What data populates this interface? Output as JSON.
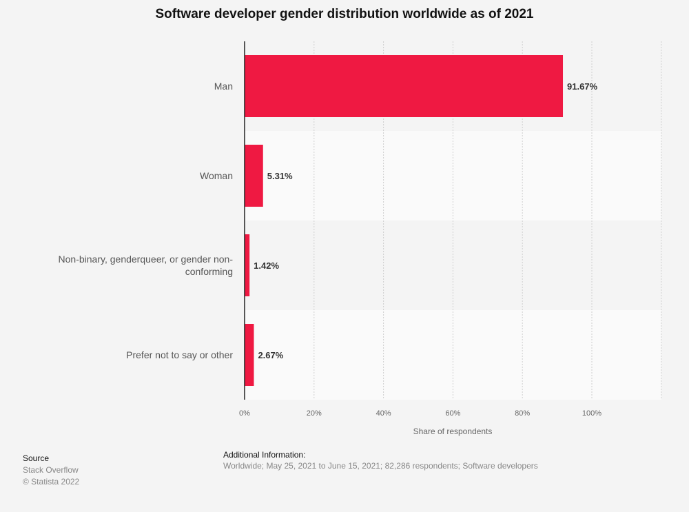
{
  "chart_data": {
    "type": "bar",
    "orientation": "horizontal",
    "title": "Software developer gender distribution worldwide as of 2021",
    "categories": [
      "Man",
      "Woman",
      "Non-binary, genderqueer, or gender non-conforming",
      "Prefer not to say or other"
    ],
    "category_lines": [
      [
        "Man"
      ],
      [
        "Woman"
      ],
      [
        "Non-binary, genderqueer, or gender non-",
        "conforming"
      ],
      [
        "Prefer not to say or other"
      ]
    ],
    "values": [
      91.67,
      5.31,
      1.42,
      2.67
    ],
    "data_labels": [
      "91.67%",
      "5.31%",
      "1.42%",
      "2.67%"
    ],
    "xlabel": "Share of respondents",
    "xlim": [
      0,
      120
    ],
    "xticks": [
      0,
      20,
      40,
      60,
      80,
      100
    ],
    "xtick_labels": [
      "0%",
      "20%",
      "40%",
      "60%",
      "80%",
      "100%"
    ],
    "grid": true,
    "bar_color": "#ef1942"
  },
  "source": {
    "heading": "Source",
    "name": "Stack Overflow",
    "copyright": "© Statista 2022"
  },
  "additional": {
    "heading": "Additional Information:",
    "text": "Worldwide; May 25, 2021 to June 15, 2021; 82,286 respondents; Software developers"
  }
}
